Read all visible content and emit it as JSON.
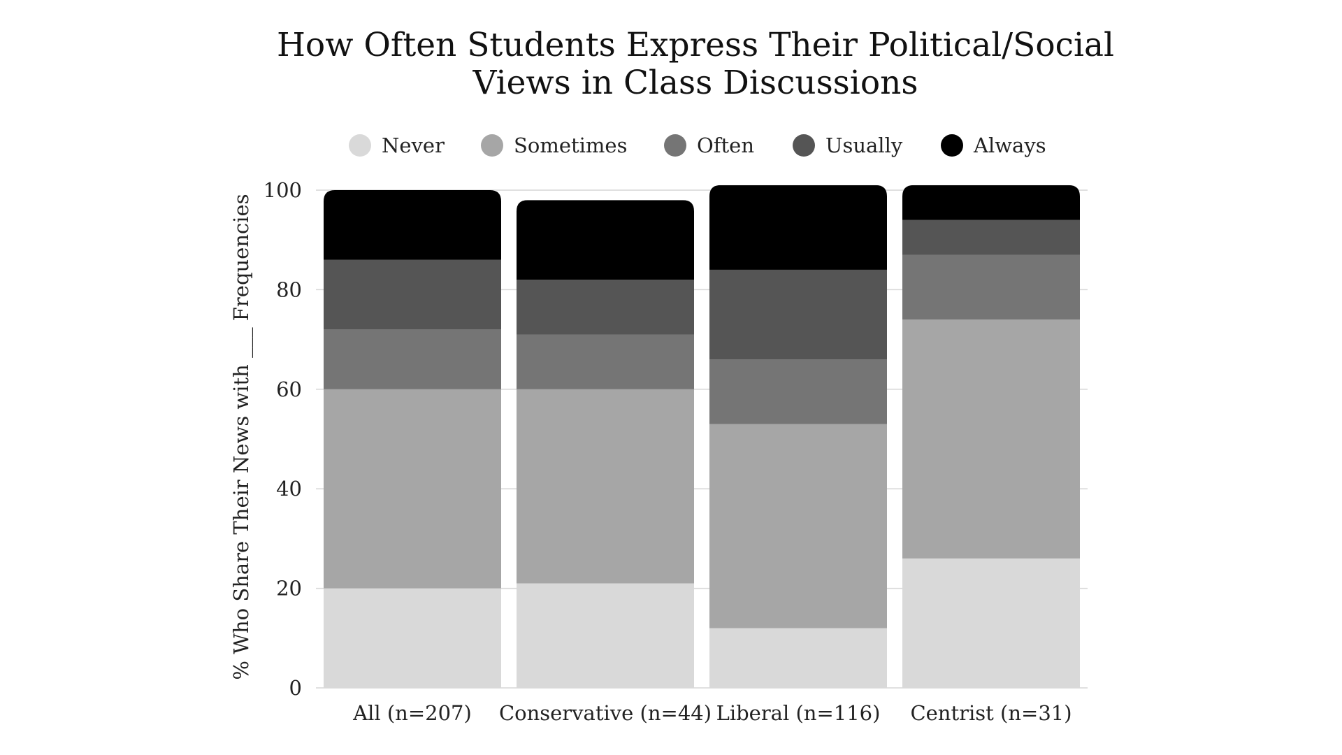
{
  "chart_data": {
    "type": "bar",
    "stacked": true,
    "title_lines": [
      "How Often Students Express Their Political/Social",
      "Views in Class Discussions"
    ],
    "xlabel": "",
    "ylabel": "% Who Share Their News with ___ Frequencies",
    "ylim": [
      0,
      100
    ],
    "yticks": [
      0,
      20,
      40,
      60,
      80,
      100
    ],
    "grid": true,
    "legend_position": "top",
    "categories": [
      "All (n=207)",
      "Conservative (n=44)",
      "Liberal (n=116)",
      "Centrist (n=31)"
    ],
    "series": [
      {
        "name": "Never",
        "color": "#d9d9d9",
        "values": [
          20,
          21,
          12,
          26
        ]
      },
      {
        "name": "Sometimes",
        "color": "#a6a6a6",
        "values": [
          40,
          39,
          41,
          48
        ]
      },
      {
        "name": "Often",
        "color": "#757575",
        "values": [
          12,
          11,
          13,
          13
        ]
      },
      {
        "name": "Usually",
        "color": "#555555",
        "values": [
          14,
          11,
          18,
          7
        ]
      },
      {
        "name": "Always",
        "color": "#000000",
        "values": [
          14,
          16,
          17,
          7
        ]
      }
    ]
  }
}
